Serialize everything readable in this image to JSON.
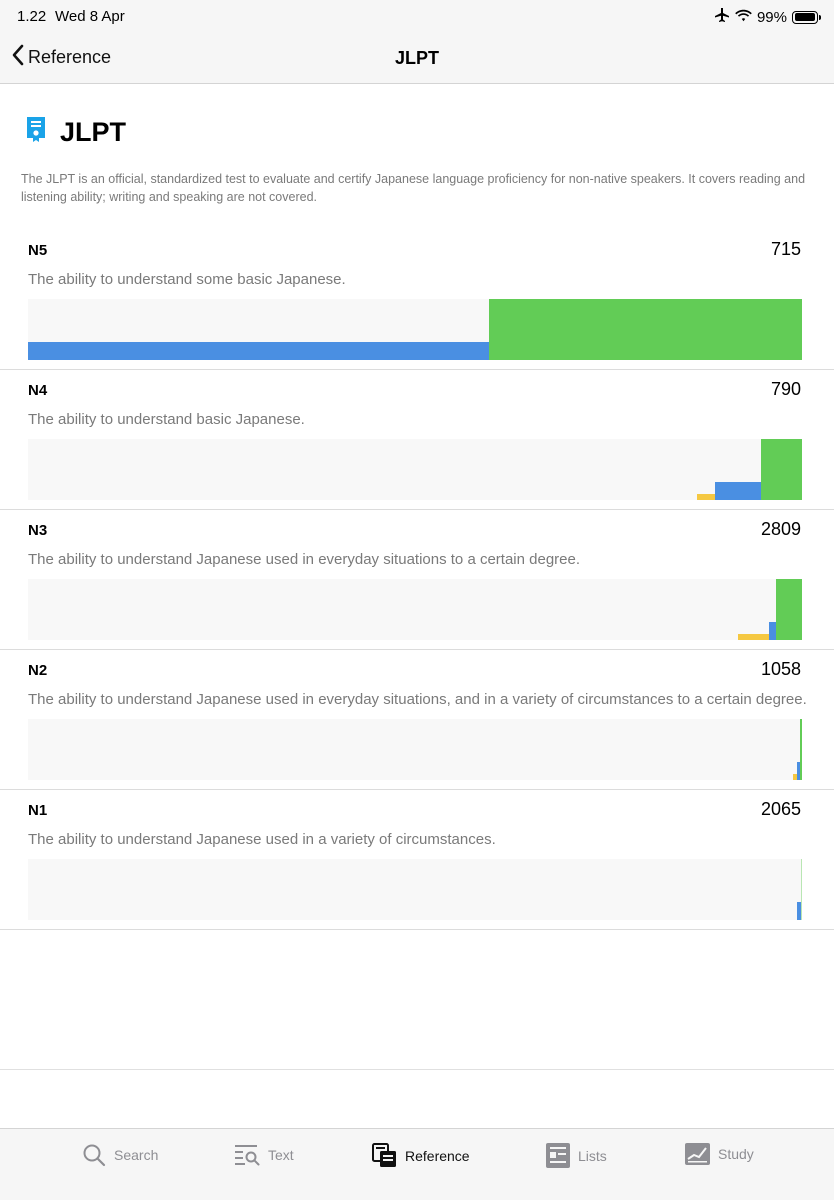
{
  "status": {
    "time": "1.22",
    "date": "Wed 8 Apr",
    "battery": "99%",
    "battery_fraction": 0.99
  },
  "nav": {
    "back_label": "Reference",
    "title": "JLPT"
  },
  "header": {
    "title": "JLPT",
    "icon": "certificate-icon"
  },
  "intro": "The JLPT is an official, standardized test to evaluate and certify Japanese language proficiency for non-native speakers. It covers reading and listening ability; writing and speaking are not covered.",
  "levels": [
    {
      "name": "N5",
      "count": "715",
      "description": "The ability to understand some basic Japanese."
    },
    {
      "name": "N4",
      "count": "790",
      "description": "The ability to understand basic Japanese."
    },
    {
      "name": "N3",
      "count": "2809",
      "description": "The ability to understand Japanese used in everyday situations to a certain degree."
    },
    {
      "name": "N2",
      "count": "1058",
      "description": "The ability to understand Japanese used in everyday situations, and in a variety of circumstances to a certain degree."
    },
    {
      "name": "N1",
      "count": "2065",
      "description": "The ability to understand Japanese used in a variety of circumstances."
    }
  ],
  "colors": {
    "green": "#62cc56",
    "blue": "#4a8fe2",
    "yellow": "#f5c842",
    "chart_bg": "#f8f8f8"
  },
  "tabs": [
    {
      "label": "Search",
      "icon": "search-icon",
      "active": false
    },
    {
      "label": "Text",
      "icon": "text-search-icon",
      "active": false
    },
    {
      "label": "Reference",
      "icon": "reference-book-icon",
      "active": true
    },
    {
      "label": "Lists",
      "icon": "lists-icon",
      "active": false
    },
    {
      "label": "Study",
      "icon": "study-chart-icon",
      "active": false
    }
  ]
}
